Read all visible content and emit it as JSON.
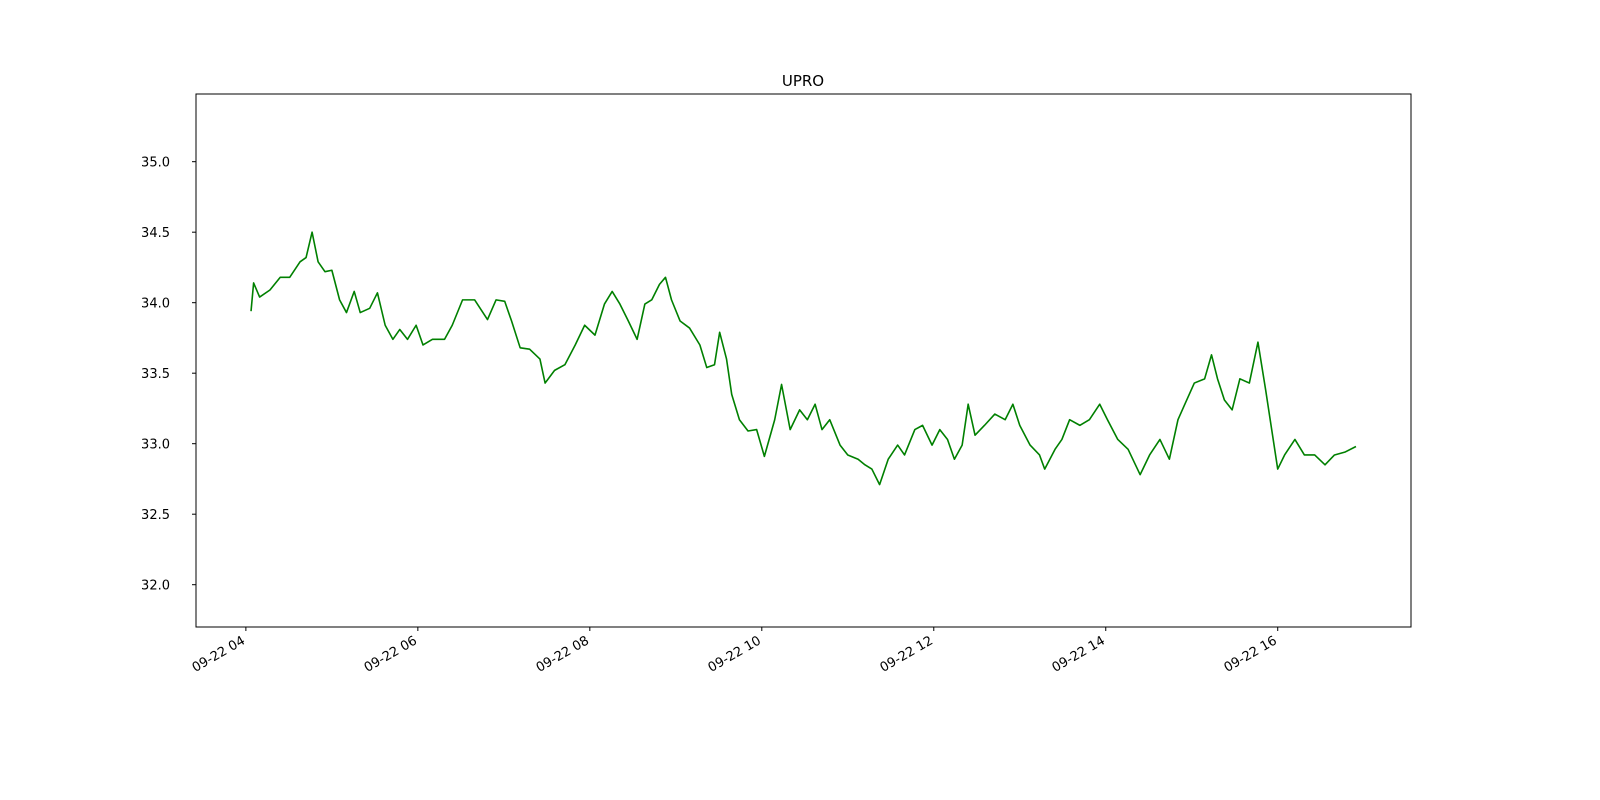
{
  "chart_data": {
    "type": "line",
    "title": "UPRO",
    "x": [
      4.06,
      4.09,
      4.16,
      4.28,
      4.4,
      4.51,
      4.63,
      4.7,
      4.77,
      4.84,
      4.92,
      5.0,
      5.09,
      5.17,
      5.26,
      5.33,
      5.44,
      5.53,
      5.62,
      5.71,
      5.79,
      5.88,
      5.98,
      6.06,
      6.17,
      6.31,
      6.4,
      6.52,
      6.66,
      6.81,
      6.91,
      7.01,
      7.09,
      7.19,
      7.3,
      7.42,
      7.48,
      7.59,
      7.71,
      7.83,
      7.94,
      8.06,
      8.17,
      8.26,
      8.35,
      8.44,
      8.55,
      8.64,
      8.72,
      8.81,
      8.88,
      8.95,
      9.05,
      9.16,
      9.28,
      9.36,
      9.45,
      9.51,
      9.59,
      9.65,
      9.74,
      9.84,
      9.94,
      10.03,
      10.15,
      10.23,
      10.33,
      10.44,
      10.53,
      10.62,
      10.7,
      10.79,
      10.91,
      11.0,
      11.12,
      11.2,
      11.28,
      11.37,
      11.47,
      11.58,
      11.66,
      11.78,
      11.87,
      11.98,
      12.07,
      12.16,
      12.24,
      12.33,
      12.4,
      12.48,
      12.59,
      12.71,
      12.83,
      12.92,
      13.0,
      13.12,
      13.23,
      13.29,
      13.41,
      13.49,
      13.58,
      13.7,
      13.81,
      13.93,
      14.02,
      14.14,
      14.26,
      14.4,
      14.51,
      14.63,
      14.74,
      14.84,
      14.92,
      15.03,
      15.15,
      15.23,
      15.3,
      15.38,
      15.47,
      15.56,
      15.67,
      15.77,
      15.86,
      15.93,
      16.0,
      16.08,
      16.2,
      16.31,
      16.43,
      16.55,
      16.66,
      16.78,
      16.91
    ],
    "series": [
      {
        "name": "UPRO",
        "color": "#008000",
        "values": [
          33.94,
          34.14,
          34.04,
          34.09,
          34.18,
          34.18,
          34.29,
          34.32,
          34.5,
          34.29,
          34.22,
          34.23,
          34.02,
          33.93,
          34.08,
          33.93,
          33.96,
          34.07,
          33.84,
          33.74,
          33.81,
          33.74,
          33.84,
          33.7,
          33.74,
          33.74,
          33.84,
          34.02,
          34.02,
          33.88,
          34.02,
          34.01,
          33.87,
          33.68,
          33.67,
          33.6,
          33.43,
          33.52,
          33.56,
          33.7,
          33.84,
          33.77,
          33.99,
          34.08,
          33.99,
          33.88,
          33.74,
          33.99,
          34.02,
          34.13,
          34.18,
          34.02,
          33.87,
          33.82,
          33.7,
          33.54,
          33.56,
          33.79,
          33.6,
          33.35,
          33.17,
          33.09,
          33.1,
          32.91,
          33.17,
          33.42,
          33.1,
          33.24,
          33.17,
          33.28,
          33.1,
          33.17,
          32.99,
          32.92,
          32.89,
          32.85,
          32.82,
          32.71,
          32.89,
          32.99,
          32.92,
          33.1,
          33.13,
          32.99,
          33.1,
          33.03,
          32.89,
          32.99,
          33.28,
          33.06,
          33.13,
          33.21,
          33.17,
          33.28,
          33.13,
          32.99,
          32.92,
          32.82,
          32.96,
          33.03,
          33.17,
          33.13,
          33.17,
          33.28,
          33.17,
          33.03,
          32.96,
          32.78,
          32.92,
          33.03,
          32.89,
          33.17,
          33.28,
          33.43,
          33.46,
          33.63,
          33.46,
          33.31,
          33.24,
          33.46,
          33.43,
          33.72,
          33.38,
          33.1,
          32.82,
          32.92,
          33.03,
          32.92,
          32.92,
          32.85,
          32.92,
          32.94,
          32.98
        ]
      }
    ],
    "xlim": [
      3.42,
      17.55
    ],
    "xticks": [
      {
        "value": 4,
        "label": "09-22 04"
      },
      {
        "value": 6,
        "label": "09-22 06"
      },
      {
        "value": 8,
        "label": "09-22 08"
      },
      {
        "value": 10,
        "label": "09-22 10"
      },
      {
        "value": 12,
        "label": "09-22 12"
      },
      {
        "value": 14,
        "label": "09-22 14"
      },
      {
        "value": 16,
        "label": "09-22 16"
      }
    ],
    "ylim": [
      31.7,
      35.48
    ],
    "yticks": [
      {
        "value": 32,
        "label": "32.0"
      },
      {
        "value": 32.5,
        "label": "32.5"
      },
      {
        "value": 33,
        "label": "33.0"
      },
      {
        "value": 33.5,
        "label": "33.5"
      },
      {
        "value": 34,
        "label": "34.0"
      },
      {
        "value": 34.5,
        "label": "34.5"
      },
      {
        "value": 35,
        "label": "35.0"
      }
    ],
    "grid": false
  }
}
